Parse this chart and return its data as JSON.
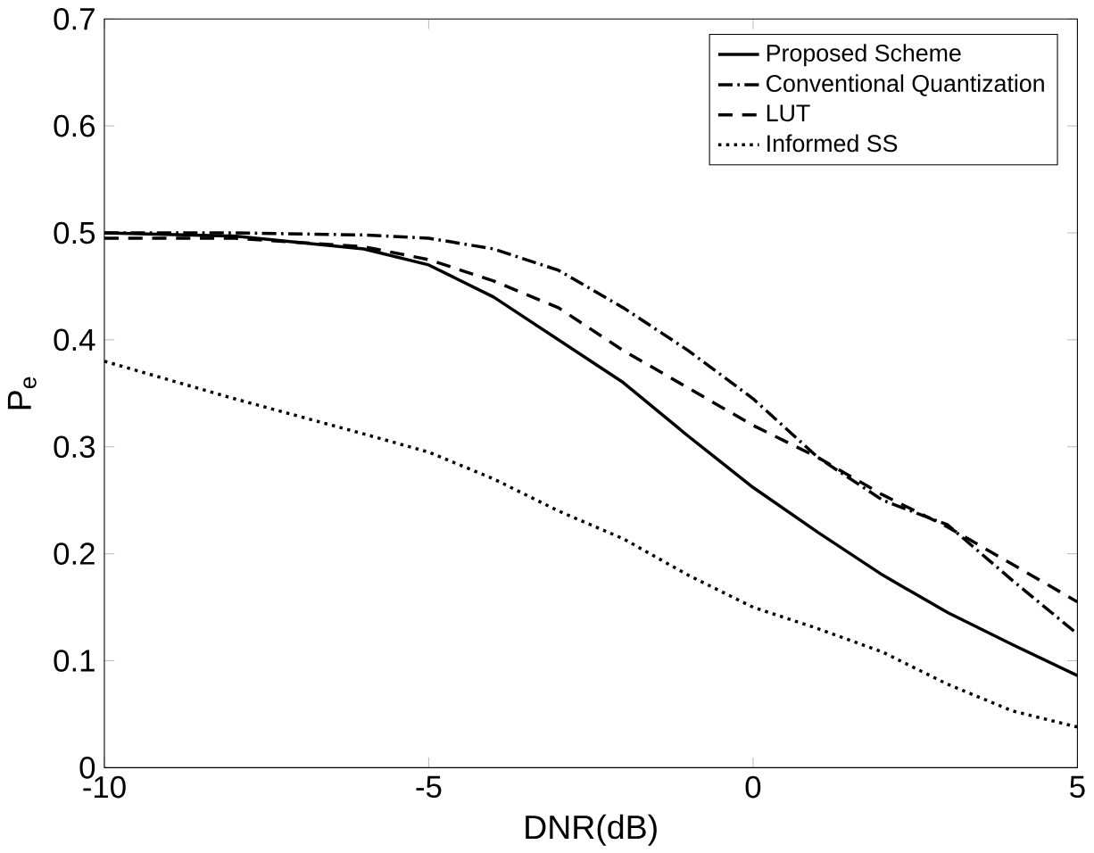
{
  "chart_data": {
    "type": "line",
    "xlabel": "DNR(dB)",
    "ylabel": "P$_{e}$",
    "xlim": [
      -10,
      5
    ],
    "ylim": [
      0,
      0.7
    ],
    "xticks": [
      -10,
      -5,
      0,
      5
    ],
    "yticks": [
      0,
      0.1,
      0.2,
      0.3,
      0.4,
      0.5,
      0.6,
      0.7
    ],
    "legend": "top right",
    "grid": false,
    "x": [
      -10,
      -8,
      -6,
      -5,
      -4,
      -3,
      -2,
      -1,
      0,
      1,
      2,
      3,
      4,
      5
    ],
    "series": [
      {
        "name": "Proposed Scheme",
        "color": "#000000",
        "line_style": "solid",
        "values": [
          0.5,
          0.497,
          0.485,
          0.47,
          0.44,
          0.4,
          0.36,
          0.31,
          0.262,
          0.22,
          0.18,
          0.145,
          0.115,
          0.086
        ]
      },
      {
        "name": "Conventional Quantization",
        "color": "#000000",
        "line_style": "dashdot",
        "values": [
          0.5,
          0.5,
          0.498,
          0.495,
          0.485,
          0.465,
          0.43,
          0.39,
          0.345,
          0.29,
          0.25,
          0.227,
          0.175,
          0.125
        ]
      },
      {
        "name": "LUT",
        "color": "#000000",
        "line_style": "dashed",
        "values": [
          0.495,
          0.495,
          0.487,
          0.475,
          0.455,
          0.43,
          0.39,
          0.355,
          0.32,
          0.29,
          0.255,
          0.225,
          0.19,
          0.155
        ]
      },
      {
        "name": "Informed SS",
        "color": "#000000",
        "line_style": "dotted",
        "values": [
          0.38,
          0.345,
          0.312,
          0.295,
          0.27,
          0.24,
          0.214,
          0.18,
          0.15,
          0.13,
          0.108,
          0.078,
          0.053,
          0.038
        ]
      }
    ]
  }
}
